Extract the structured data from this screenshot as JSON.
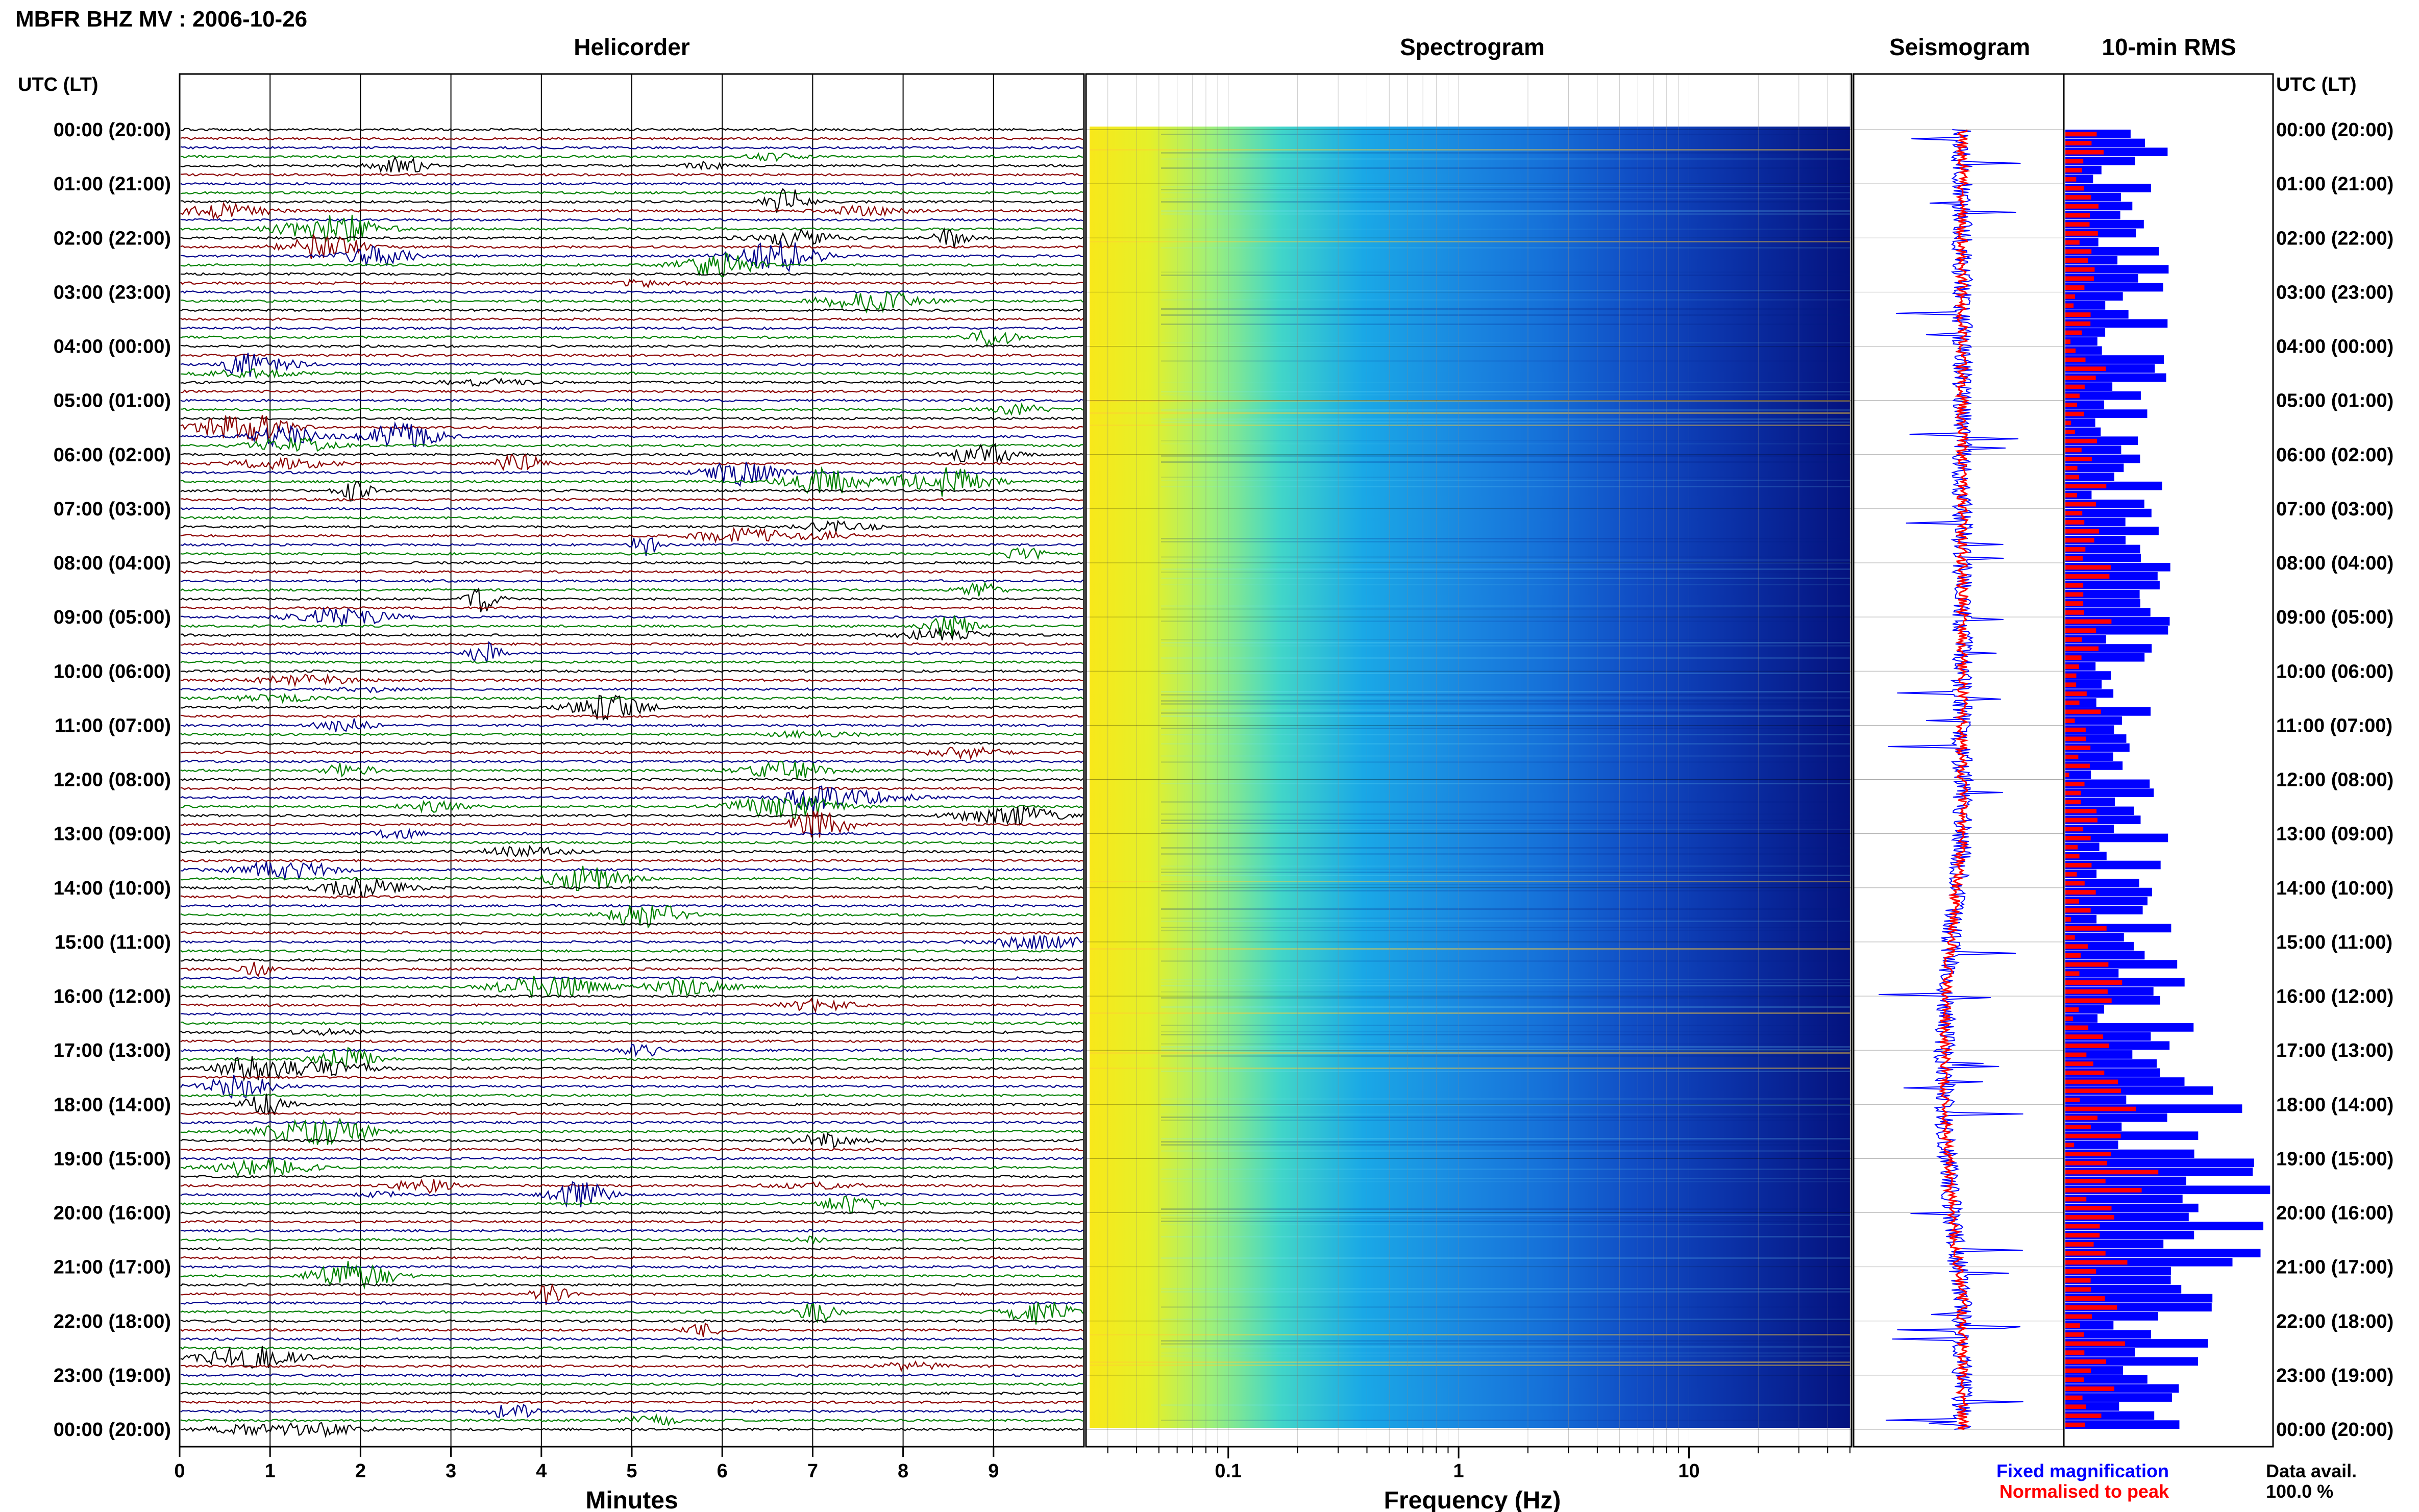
{
  "chart_data": {
    "title": "MBFR BHZ MV : 2006-10-26",
    "panels": {
      "helicorder": {
        "title": "Helicorder",
        "xlabel": "Minutes",
        "xticks": [
          "0",
          "1",
          "2",
          "3",
          "4",
          "5",
          "6",
          "7",
          "8",
          "9"
        ],
        "xlim": [
          0,
          10
        ],
        "trace_colors": [
          "#000000",
          "#8b0000",
          "#00008b",
          "#008000"
        ]
      },
      "spectrogram": {
        "title": "Spectrogram",
        "xlabel": "Frequency (Hz)",
        "xscale": "log",
        "xticks": [
          "0.1",
          "1",
          "10"
        ],
        "xlim": [
          0.025,
          50
        ]
      },
      "seismogram": {
        "title": "Seismogram"
      },
      "rms": {
        "title": "10-min RMS"
      }
    },
    "time_axis_label": "UTC (LT)",
    "time_labels": [
      "00:00 (20:00)",
      "01:00 (21:00)",
      "02:00 (22:00)",
      "03:00 (23:00)",
      "04:00 (00:00)",
      "05:00 (01:00)",
      "06:00 (02:00)",
      "07:00 (03:00)",
      "08:00 (04:00)",
      "09:00 (05:00)",
      "10:00 (06:00)",
      "11:00 (07:00)",
      "12:00 (08:00)",
      "13:00 (09:00)",
      "14:00 (10:00)",
      "15:00 (11:00)",
      "16:00 (12:00)",
      "17:00 (13:00)",
      "18:00 (14:00)",
      "19:00 (15:00)",
      "20:00 (16:00)",
      "21:00 (17:00)",
      "22:00 (18:00)",
      "23:00 (19:00)",
      "00:00 (20:00)"
    ],
    "legend": [
      {
        "name": "Fixed magnification",
        "color": "#0000ff"
      },
      {
        "name": "Normalised to peak",
        "color": "#ff0000"
      }
    ],
    "data_availability": {
      "label": "Data avail.",
      "value": "100.0 %"
    }
  }
}
